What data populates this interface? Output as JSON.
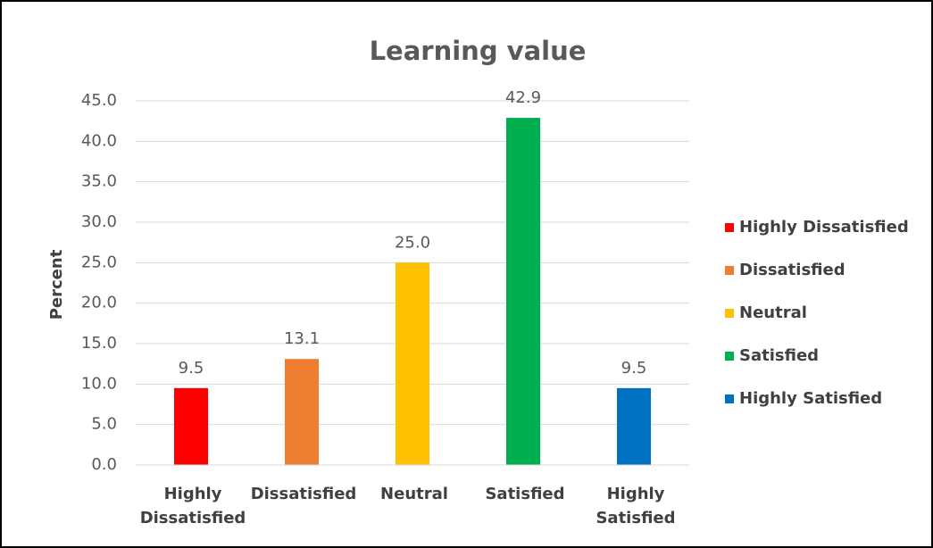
{
  "chart_data": {
    "type": "bar",
    "title": "Learning value",
    "y_label": "Percent",
    "categories": [
      "Highly Dissatisfied",
      "Dissatisfied",
      "Neutral",
      "Satisfied",
      "Highly Satisfied"
    ],
    "values": [
      9.5,
      13.1,
      25.0,
      42.9,
      9.5
    ],
    "value_labels": [
      "9.5",
      "13.1",
      "25.0",
      "42.9",
      "9.5"
    ],
    "colors": [
      "#ff0000",
      "#ed7d31",
      "#ffc000",
      "#00b050",
      "#0070c0"
    ],
    "ylim": [
      0,
      45
    ],
    "yticks": [
      {
        "value": 0,
        "label": "0.0"
      },
      {
        "value": 5,
        "label": "5.0"
      },
      {
        "value": 10,
        "label": "10.0"
      },
      {
        "value": 15,
        "label": "15.0"
      },
      {
        "value": 20,
        "label": "20.0"
      },
      {
        "value": 25,
        "label": "25.0"
      },
      {
        "value": 30,
        "label": "30.0"
      },
      {
        "value": 35,
        "label": "35.0"
      },
      {
        "value": 40,
        "label": "40.0"
      },
      {
        "value": 45,
        "label": "45.0"
      }
    ],
    "grid": true,
    "legend": "right"
  }
}
